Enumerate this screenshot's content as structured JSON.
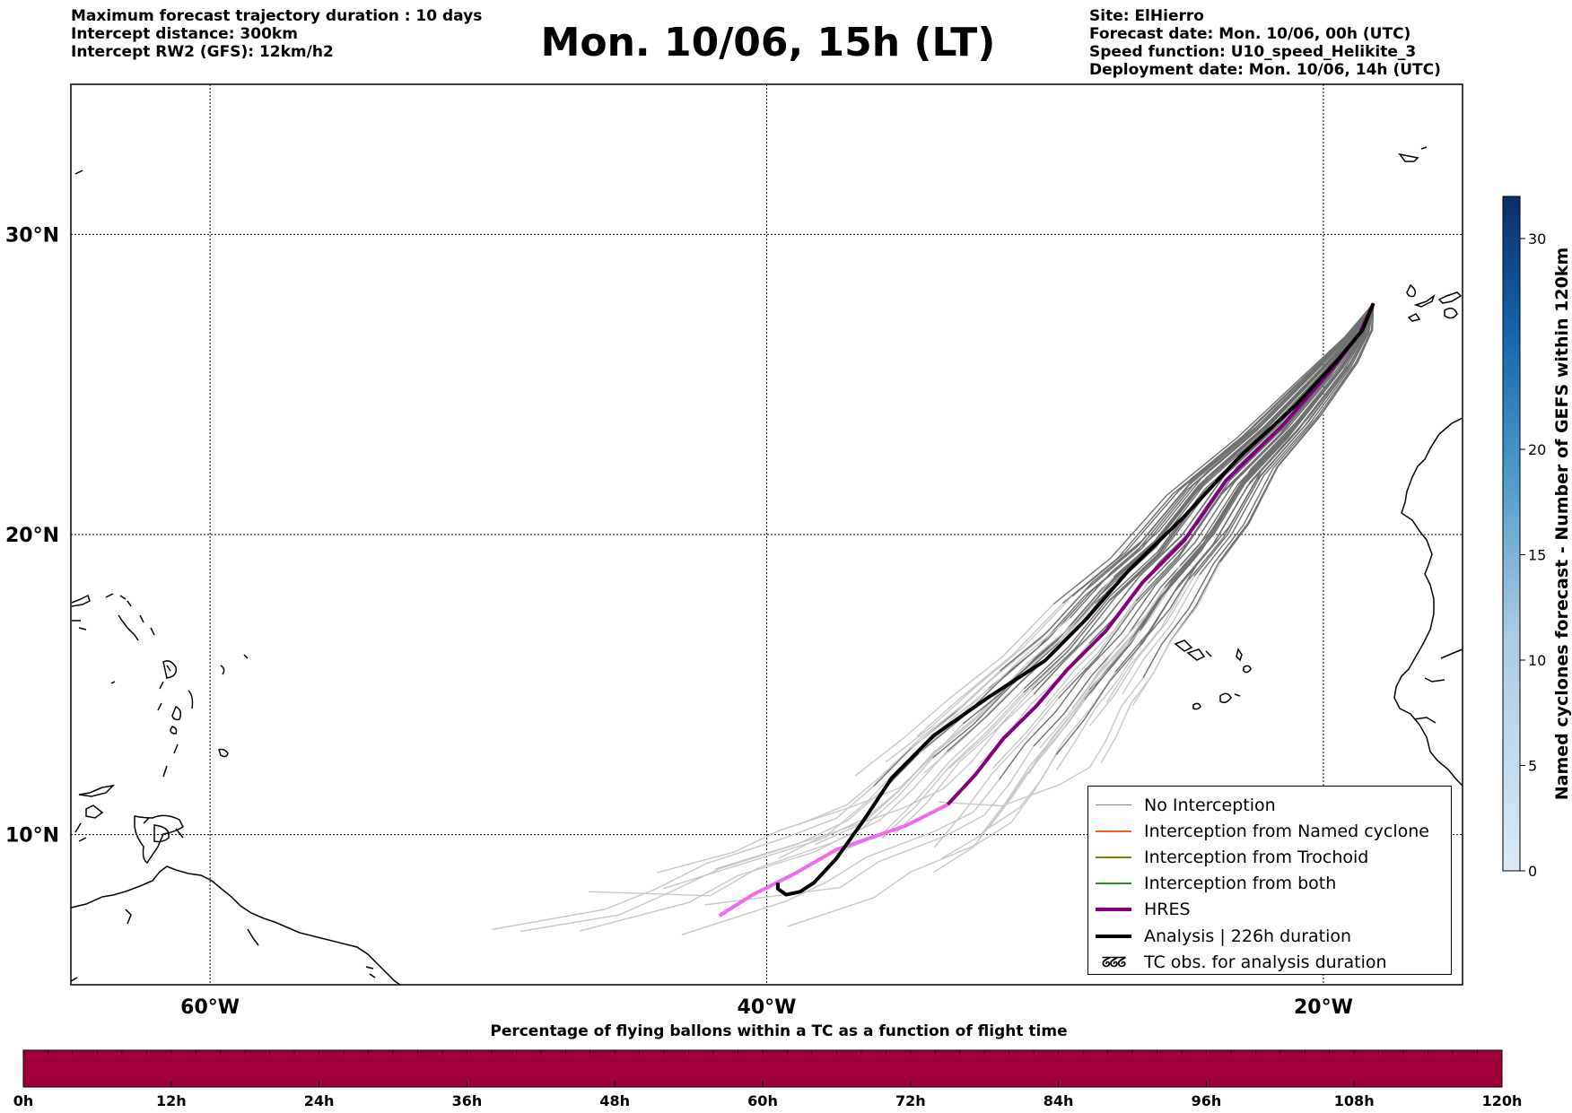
{
  "header": {
    "left_lines": [
      "Maximum forecast trajectory duration : 10 days",
      "Intercept distance: 300km",
      "Intercept RW2 (GFS):  12km/h2"
    ],
    "title": "Mon. 10/06, 15h (LT)",
    "right_lines": [
      "Site: ElHierro",
      "Forecast date: Mon. 10/06, 00h (UTC)",
      "Speed function: U10_speed_Helikite_3",
      "Deployment date: Mon. 10/06, 14h (UTC)"
    ]
  },
  "map": {
    "lon_range": [
      -65,
      -15
    ],
    "lat_range": [
      5,
      35
    ],
    "lat_gridlines": [
      {
        "value": 30,
        "label": "30°N"
      },
      {
        "value": 20,
        "label": "20°N"
      },
      {
        "value": 10,
        "label": "10°N"
      }
    ],
    "lon_gridlines": [
      {
        "value": -60,
        "label": "60°W"
      },
      {
        "value": -40,
        "label": "40°W"
      },
      {
        "value": -20,
        "label": "20°W"
      }
    ],
    "launch_site": {
      "lon": -18.2,
      "lat": 27.7
    },
    "analysis_track": [
      [
        -18.2,
        27.7
      ],
      [
        -18.6,
        26.8
      ],
      [
        -19.5,
        25.8
      ],
      [
        -21.0,
        24.3
      ],
      [
        -23.0,
        22.6
      ],
      [
        -25.0,
        20.6
      ],
      [
        -27.0,
        18.8
      ],
      [
        -28.5,
        17.2
      ],
      [
        -30.0,
        15.8
      ],
      [
        -32.0,
        14.6
      ],
      [
        -34.0,
        13.3
      ],
      [
        -35.5,
        11.9
      ],
      [
        -36.5,
        10.5
      ],
      [
        -37.5,
        9.2
      ],
      [
        -38.3,
        8.4
      ],
      [
        -38.8,
        8.1
      ],
      [
        -39.3,
        8.0
      ],
      [
        -39.6,
        8.2
      ],
      [
        -39.6,
        8.4
      ]
    ],
    "hres_track": [
      [
        -18.2,
        27.7
      ],
      [
        -18.7,
        26.7
      ],
      [
        -19.7,
        25.5
      ],
      [
        -21.5,
        23.6
      ],
      [
        -23.5,
        21.8
      ],
      [
        -25.0,
        19.8
      ],
      [
        -26.5,
        18.4
      ],
      [
        -27.8,
        16.8
      ],
      [
        -29.2,
        15.5
      ],
      [
        -30.3,
        14.3
      ],
      [
        -31.5,
        13.2
      ],
      [
        -32.5,
        12.0
      ],
      [
        -33.5,
        11.0
      ],
      [
        -35.0,
        10.3
      ],
      [
        -37.5,
        9.5
      ],
      [
        -39.0,
        8.7
      ],
      [
        -40.5,
        8.0
      ],
      [
        -41.7,
        7.3
      ]
    ],
    "tick_colors": {
      "grid": "#000000"
    }
  },
  "legend": {
    "items": [
      {
        "label": "No Interception",
        "color": "#808080",
        "kind": "line",
        "width": 1.5
      },
      {
        "label": "Interception from Named cyclone",
        "color": "#ff5a1f",
        "kind": "line",
        "width": 1.5
      },
      {
        "label": "Interception from Trochoid",
        "color": "#808000",
        "kind": "line",
        "width": 1.5
      },
      {
        "label": "Interception from both",
        "color": "#2e8b2e",
        "kind": "line",
        "width": 1.5
      },
      {
        "label": "HRES",
        "color": "#800080",
        "kind": "line",
        "width": 4
      },
      {
        "label": "Analysis | 226h duration",
        "color": "#000000",
        "kind": "line",
        "width": 4
      },
      {
        "label": "TC obs. for analysis duration",
        "color": "#000000",
        "kind": "glyph",
        "glyph": "ᘔᘔᘔ"
      }
    ]
  },
  "colorbar_right": {
    "title": "Named cyclones forecast - Number of GEFS within 120km",
    "min": 0,
    "max": 32,
    "ticks": [
      0,
      5,
      10,
      15,
      20,
      30
    ],
    "color_low": "#dbe9f6",
    "color_high": "#08306b"
  },
  "colorbar_bottom": {
    "title": "Percentage of flying ballons within a TC as a function of flight time",
    "fill_color": "#a0003a",
    "ticks": [
      "0h",
      "12h",
      "24h",
      "36h",
      "48h",
      "60h",
      "72h",
      "84h",
      "96h",
      "108h",
      "120h"
    ]
  }
}
